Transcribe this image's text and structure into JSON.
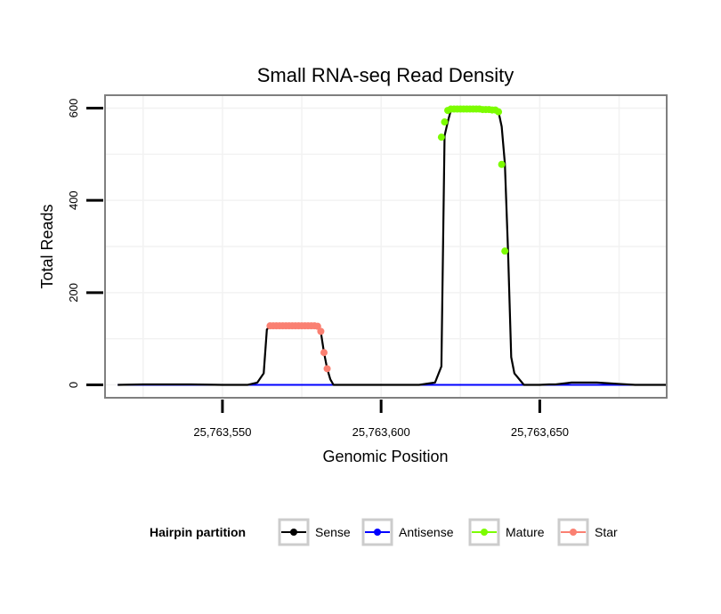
{
  "chart_data": {
    "type": "line",
    "title": "Small RNA-seq Read Density",
    "xlabel": "Genomic Position",
    "ylabel": "Total Reads",
    "xlim": [
      25763513,
      25763690
    ],
    "ylim": [
      -28,
      628
    ],
    "x_ticks": [
      25763550,
      25763600,
      25763650
    ],
    "x_tick_labels": [
      "25,763,550",
      "25,763,600",
      "25,763,650"
    ],
    "y_ticks": [
      0,
      200,
      400,
      600
    ],
    "y_tick_labels": [
      "0",
      "200",
      "400",
      "600"
    ],
    "grid": true,
    "legend": {
      "title": "Hairpin partition",
      "position": "bottom",
      "entries": [
        {
          "label": "Sense",
          "color": "#000000"
        },
        {
          "label": "Antisense",
          "color": "#0000ff"
        },
        {
          "label": "Mature",
          "color": "#7cfc00"
        },
        {
          "label": "Star",
          "color": "#fa8072"
        }
      ]
    },
    "series": [
      {
        "name": "Sense",
        "color": "#000000",
        "x": [
          25763517,
          25763525,
          25763540,
          25763550,
          25763558,
          25763561,
          25763563,
          25763564,
          25763565,
          25763570,
          25763575,
          25763580,
          25763581,
          25763582,
          25763583,
          25763584,
          25763585,
          25763590,
          25763600,
          25763612,
          25763617,
          25763619,
          25763620,
          25763621,
          25763622,
          25763625,
          25763630,
          25763635,
          25763637,
          25763638,
          25763639,
          25763640,
          25763641,
          25763642,
          25763645,
          25763650,
          25763653,
          25763655,
          25763660,
          25763665,
          25763668,
          25763675,
          25763680,
          25763690
        ],
        "y": [
          0,
          1,
          1,
          0,
          0,
          5,
          25,
          120,
          128,
          128,
          128,
          127,
          115,
          70,
          35,
          12,
          0,
          0,
          0,
          0,
          5,
          40,
          540,
          570,
          596,
          598,
          598,
          597,
          592,
          560,
          480,
          290,
          60,
          25,
          0,
          0,
          1,
          1,
          5,
          5,
          5,
          2,
          0,
          0
        ]
      },
      {
        "name": "Antisense",
        "color": "#0000ff",
        "x": [
          25763517,
          25763690
        ],
        "y": [
          0,
          0
        ]
      },
      {
        "name": "Mature",
        "color": "#7cfc00",
        "x": [
          25763619,
          25763620,
          25763621,
          25763622,
          25763623,
          25763624,
          25763625,
          25763626,
          25763627,
          25763628,
          25763629,
          25763630,
          25763631,
          25763632,
          25763633,
          25763634,
          25763635,
          25763636,
          25763637,
          25763638,
          25763639
        ],
        "y": [
          537,
          570,
          595,
          598,
          598,
          598,
          598,
          598,
          598,
          598,
          598,
          598,
          598,
          597,
          597,
          597,
          596,
          596,
          592,
          478,
          290
        ]
      },
      {
        "name": "Star",
        "color": "#fa8072",
        "x": [
          25763565,
          25763566,
          25763567,
          25763568,
          25763569,
          25763570,
          25763571,
          25763572,
          25763573,
          25763574,
          25763575,
          25763576,
          25763577,
          25763578,
          25763579,
          25763580,
          25763581,
          25763582,
          25763583
        ],
        "y": [
          128,
          128,
          128,
          128,
          128,
          128,
          128,
          128,
          128,
          128,
          128,
          128,
          128,
          128,
          128,
          127,
          116,
          70,
          35
        ]
      }
    ]
  }
}
